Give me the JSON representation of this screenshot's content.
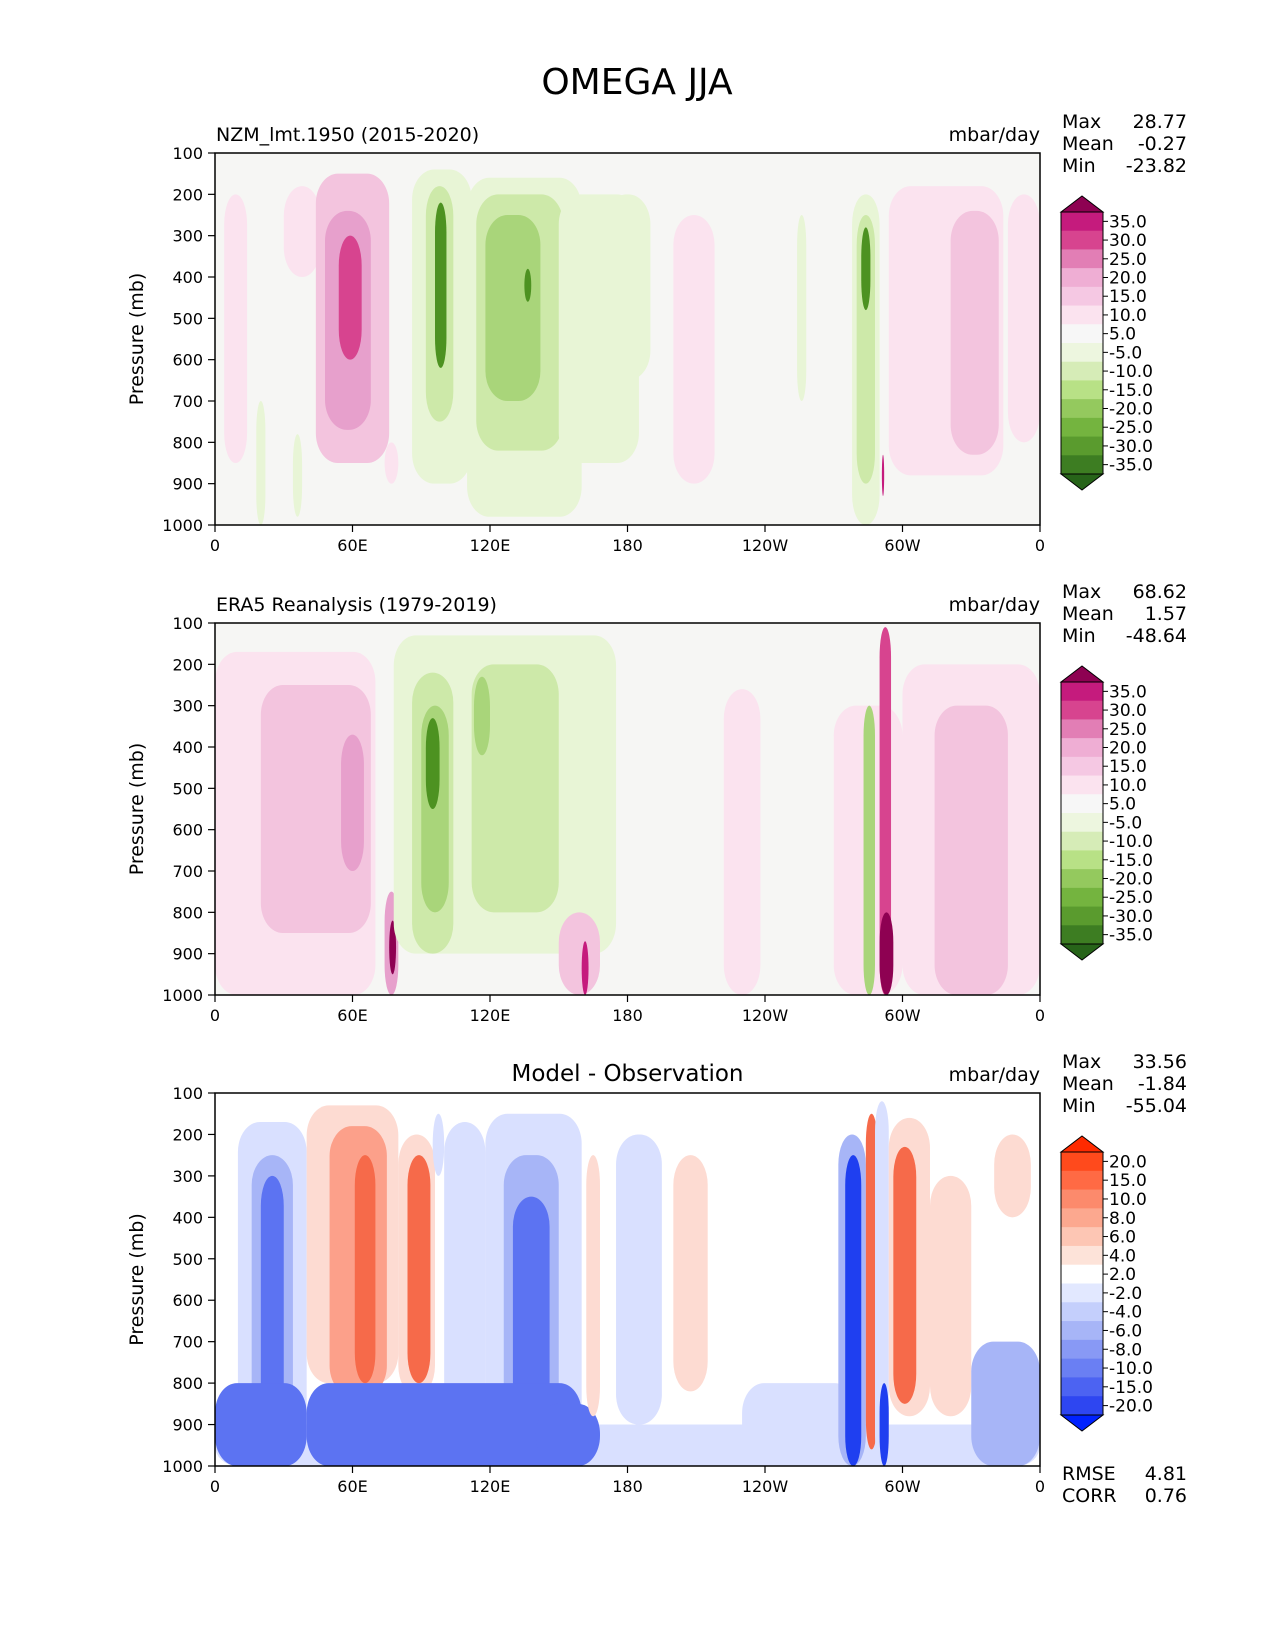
{
  "figure_title": "OMEGA JJA",
  "colors": {
    "background": "#ffffff",
    "panel_fill": "#f6f6f4",
    "pink_light": "#fbe3ef",
    "pink_mid": "#f3c4de",
    "pink_strong": "#e7a0cc",
    "magenta_dark": "#8e0152",
    "green_light": "#e8f5d6",
    "green_mid": "#cde9a9",
    "green_strong": "#a9d57a",
    "green_dark": "#4d9221",
    "red_light": "#fddbd2",
    "red_mid": "#fca08a",
    "red_strong": "#f66a4a",
    "blue_light": "#d9e0ff",
    "blue_mid": "#a7b5f7",
    "blue_strong": "#5c73f2",
    "blue_dark": "#1f3ff0"
  },
  "chart_data": [
    {
      "type": "heatmap",
      "id": "model",
      "title": "NZM_lmt.1950 (2015-2020)",
      "title_center": "",
      "units": "mbar/day",
      "ylabel": "Pressure (mb)",
      "xlabel": "",
      "x_ticks": [
        "0",
        "60E",
        "120E",
        "180",
        "120W",
        "60W",
        "0"
      ],
      "y_ticks": [
        "100",
        "200",
        "300",
        "400",
        "500",
        "600",
        "700",
        "800",
        "900",
        "1000"
      ],
      "xlim": [
        0,
        360
      ],
      "ylim": [
        1000,
        100
      ],
      "stats": [
        {
          "label": "Max",
          "value": "28.77"
        },
        {
          "label": "Mean",
          "value": "-0.27"
        },
        {
          "label": "Min",
          "value": "-23.82"
        }
      ],
      "extra_stats": [],
      "colorbar": {
        "labels": [
          "35.0",
          "30.0",
          "25.0",
          "20.0",
          "15.0",
          "10.0",
          "5.0",
          "-5.0",
          "-10.0",
          "-15.0",
          "-20.0",
          "-25.0",
          "-30.0",
          "-35.0"
        ],
        "top_color": "#8e0152",
        "bottom_color": "#276419",
        "swatches": [
          "#c51b7d",
          "#d7448f",
          "#e27eb5",
          "#efaed4",
          "#f5c8e3",
          "#fbe3ef",
          "#f7f7f7",
          "#edf6df",
          "#d6ecb7",
          "#b8e186",
          "#94c95e",
          "#74b43f",
          "#5a9b2e",
          "#3d7d22"
        ]
      },
      "features": [
        {
          "x0": 4,
          "x1": 14,
          "p0": 200,
          "p1": 850,
          "v": 5
        },
        {
          "x0": 30,
          "x1": 46,
          "p0": 180,
          "p1": 400,
          "v": 5
        },
        {
          "x0": 44,
          "x1": 76,
          "p0": 150,
          "p1": 850,
          "v": 10
        },
        {
          "x0": 48,
          "x1": 68,
          "p0": 240,
          "p1": 770,
          "v": 15
        },
        {
          "x0": 54,
          "x1": 64,
          "p0": 300,
          "p1": 600,
          "v": 20
        },
        {
          "x0": 18,
          "x1": 22,
          "p0": 700,
          "p1": 1000,
          "v": -5
        },
        {
          "x0": 34,
          "x1": 38,
          "p0": 780,
          "p1": 980,
          "v": -5
        },
        {
          "x0": 74,
          "x1": 80,
          "p0": 800,
          "p1": 900,
          "v": 5
        },
        {
          "x0": 86,
          "x1": 112,
          "p0": 140,
          "p1": 900,
          "v": -5
        },
        {
          "x0": 92,
          "x1": 104,
          "p0": 180,
          "p1": 750,
          "v": -10
        },
        {
          "x0": 96,
          "x1": 101,
          "p0": 220,
          "p1": 620,
          "v": -20
        },
        {
          "x0": 110,
          "x1": 160,
          "p0": 160,
          "p1": 980,
          "v": -5
        },
        {
          "x0": 114,
          "x1": 152,
          "p0": 200,
          "p1": 820,
          "v": -10
        },
        {
          "x0": 118,
          "x1": 142,
          "p0": 250,
          "p1": 700,
          "v": -15
        },
        {
          "x0": 135,
          "x1": 138,
          "p0": 380,
          "p1": 460,
          "v": -20
        },
        {
          "x0": 150,
          "x1": 185,
          "p0": 200,
          "p1": 850,
          "v": -5
        },
        {
          "x0": 170,
          "x1": 190,
          "p0": 200,
          "p1": 650,
          "v": -5
        },
        {
          "x0": 200,
          "x1": 218,
          "p0": 250,
          "p1": 900,
          "v": 5
        },
        {
          "x0": 254,
          "x1": 258,
          "p0": 250,
          "p1": 700,
          "v": -5
        },
        {
          "x0": 278,
          "x1": 290,
          "p0": 200,
          "p1": 1000,
          "v": -5
        },
        {
          "x0": 280,
          "x1": 288,
          "p0": 250,
          "p1": 900,
          "v": -10
        },
        {
          "x0": 282,
          "x1": 286,
          "p0": 280,
          "p1": 480,
          "v": -20
        },
        {
          "x0": 291,
          "x1": 292,
          "p0": 830,
          "p1": 930,
          "v": 25
        },
        {
          "x0": 294,
          "x1": 344,
          "p0": 180,
          "p1": 880,
          "v": 5
        },
        {
          "x0": 321,
          "x1": 342,
          "p0": 240,
          "p1": 830,
          "v": 10
        },
        {
          "x0": 346,
          "x1": 360,
          "p0": 200,
          "p1": 800,
          "v": 5
        }
      ]
    },
    {
      "type": "heatmap",
      "id": "obs",
      "title": "ERA5 Reanalysis (1979-2019)",
      "title_center": "",
      "units": "mbar/day",
      "ylabel": "Pressure (mb)",
      "xlabel": "",
      "x_ticks": [
        "0",
        "60E",
        "120E",
        "180",
        "120W",
        "60W",
        "0"
      ],
      "y_ticks": [
        "100",
        "200",
        "300",
        "400",
        "500",
        "600",
        "700",
        "800",
        "900",
        "1000"
      ],
      "xlim": [
        0,
        360
      ],
      "ylim": [
        1000,
        100
      ],
      "stats": [
        {
          "label": "Max",
          "value": "68.62"
        },
        {
          "label": "Mean",
          "value": "1.57"
        },
        {
          "label": "Min",
          "value": "-48.64"
        }
      ],
      "extra_stats": [],
      "colorbar": {
        "labels": [
          "35.0",
          "30.0",
          "25.0",
          "20.0",
          "15.0",
          "10.0",
          "5.0",
          "-5.0",
          "-10.0",
          "-15.0",
          "-20.0",
          "-25.0",
          "-30.0",
          "-35.0"
        ],
        "top_color": "#8e0152",
        "bottom_color": "#276419",
        "swatches": [
          "#c51b7d",
          "#d7448f",
          "#e27eb5",
          "#efaed4",
          "#f5c8e3",
          "#fbe3ef",
          "#f7f7f7",
          "#edf6df",
          "#d6ecb7",
          "#b8e186",
          "#94c95e",
          "#74b43f",
          "#5a9b2e",
          "#3d7d22"
        ]
      },
      "features": [
        {
          "x0": 0,
          "x1": 70,
          "p0": 170,
          "p1": 1000,
          "v": 5
        },
        {
          "x0": 20,
          "x1": 68,
          "p0": 250,
          "p1": 850,
          "v": 10
        },
        {
          "x0": 55,
          "x1": 65,
          "p0": 370,
          "p1": 700,
          "v": 15
        },
        {
          "x0": 74,
          "x1": 80,
          "p0": 750,
          "p1": 1000,
          "v": 15
        },
        {
          "x0": 76,
          "x1": 79,
          "p0": 820,
          "p1": 950,
          "v": 30
        },
        {
          "x0": 78,
          "x1": 175,
          "p0": 130,
          "p1": 900,
          "v": -5
        },
        {
          "x0": 86,
          "x1": 104,
          "p0": 220,
          "p1": 900,
          "v": -10
        },
        {
          "x0": 90,
          "x1": 102,
          "p0": 300,
          "p1": 800,
          "v": -15
        },
        {
          "x0": 92,
          "x1": 98,
          "p0": 330,
          "p1": 550,
          "v": -20
        },
        {
          "x0": 112,
          "x1": 150,
          "p0": 200,
          "p1": 800,
          "v": -10
        },
        {
          "x0": 113,
          "x1": 120,
          "p0": 230,
          "p1": 420,
          "v": -15
        },
        {
          "x0": 150,
          "x1": 168,
          "p0": 800,
          "p1": 1000,
          "v": 10
        },
        {
          "x0": 160,
          "x1": 163,
          "p0": 870,
          "p1": 1000,
          "v": 25
        },
        {
          "x0": 222,
          "x1": 238,
          "p0": 260,
          "p1": 1000,
          "v": 5
        },
        {
          "x0": 270,
          "x1": 300,
          "p0": 300,
          "p1": 1000,
          "v": 5
        },
        {
          "x0": 283,
          "x1": 288,
          "p0": 300,
          "p1": 1000,
          "v": -15
        },
        {
          "x0": 290,
          "x1": 295,
          "p0": 110,
          "p1": 1000,
          "v": 20
        },
        {
          "x0": 290,
          "x1": 296,
          "p0": 800,
          "p1": 1000,
          "v": 35
        },
        {
          "x0": 300,
          "x1": 360,
          "p0": 200,
          "p1": 1000,
          "v": 5
        },
        {
          "x0": 314,
          "x1": 346,
          "p0": 300,
          "p1": 1000,
          "v": 10
        }
      ]
    },
    {
      "type": "heatmap",
      "id": "diff",
      "title": "",
      "title_center": "Model - Observation",
      "units": "mbar/day",
      "ylabel": "Pressure (mb)",
      "xlabel": "",
      "x_ticks": [
        "0",
        "60E",
        "120E",
        "180",
        "120W",
        "60W",
        "0"
      ],
      "y_ticks": [
        "100",
        "200",
        "300",
        "400",
        "500",
        "600",
        "700",
        "800",
        "900",
        "1000"
      ],
      "xlim": [
        0,
        360
      ],
      "ylim": [
        1000,
        100
      ],
      "stats": [
        {
          "label": "Max",
          "value": "33.56"
        },
        {
          "label": "Mean",
          "value": "-1.84"
        },
        {
          "label": "Min",
          "value": "-55.04"
        }
      ],
      "extra_stats": [
        {
          "label": "RMSE",
          "value": "4.81"
        },
        {
          "label": "CORR",
          "value": "0.76"
        }
      ],
      "colorbar": {
        "labels": [
          "20.0",
          "15.0",
          "10.0",
          "8.0",
          "6.0",
          "4.0",
          "2.0",
          "-2.0",
          "-4.0",
          "-6.0",
          "-8.0",
          "-10.0",
          "-15.0",
          "-20.0"
        ],
        "top_color": "#ff2a00",
        "bottom_color": "#0022ff",
        "swatches": [
          "#ff4a1c",
          "#ff6a44",
          "#fc8a6c",
          "#fca88f",
          "#fdc6b4",
          "#fde3d9",
          "#ffffff",
          "#e2e8ff",
          "#c4cffc",
          "#a7b5f7",
          "#8899f5",
          "#6a7ff3",
          "#4c63f2",
          "#2e46f1"
        ]
      },
      "features": [
        {
          "x0": 0,
          "x1": 360,
          "p0": 900,
          "p1": 1000,
          "v": -4
        },
        {
          "x0": 10,
          "x1": 40,
          "p0": 170,
          "p1": 1000,
          "v": -4
        },
        {
          "x0": 16,
          "x1": 34,
          "p0": 250,
          "p1": 1000,
          "v": -8
        },
        {
          "x0": 20,
          "x1": 30,
          "p0": 300,
          "p1": 980,
          "v": -15
        },
        {
          "x0": 0,
          "x1": 40,
          "p0": 800,
          "p1": 1000,
          "v": -10
        },
        {
          "x0": 40,
          "x1": 80,
          "p0": 130,
          "p1": 800,
          "v": 4
        },
        {
          "x0": 50,
          "x1": 75,
          "p0": 180,
          "p1": 830,
          "v": 8
        },
        {
          "x0": 61,
          "x1": 70,
          "p0": 250,
          "p1": 800,
          "v": 15
        },
        {
          "x0": 80,
          "x1": 96,
          "p0": 200,
          "p1": 830,
          "v": 6
        },
        {
          "x0": 84,
          "x1": 94,
          "p0": 250,
          "p1": 800,
          "v": 15
        },
        {
          "x0": 95,
          "x1": 100,
          "p0": 150,
          "p1": 300,
          "v": -4
        },
        {
          "x0": 100,
          "x1": 118,
          "p0": 170,
          "p1": 1000,
          "v": -2
        },
        {
          "x0": 118,
          "x1": 160,
          "p0": 150,
          "p1": 1000,
          "v": -4
        },
        {
          "x0": 126,
          "x1": 150,
          "p0": 250,
          "p1": 1000,
          "v": -8
        },
        {
          "x0": 130,
          "x1": 146,
          "p0": 350,
          "p1": 1000,
          "v": -10
        },
        {
          "x0": 40,
          "x1": 160,
          "p0": 800,
          "p1": 1000,
          "v": -10
        },
        {
          "x0": 140,
          "x1": 168,
          "p0": 850,
          "p1": 1000,
          "v": -15
        },
        {
          "x0": 162,
          "x1": 168,
          "p0": 250,
          "p1": 880,
          "v": 4
        },
        {
          "x0": 175,
          "x1": 195,
          "p0": 200,
          "p1": 900,
          "v": -2
        },
        {
          "x0": 200,
          "x1": 215,
          "p0": 250,
          "p1": 820,
          "v": 4
        },
        {
          "x0": 230,
          "x1": 280,
          "p0": 800,
          "p1": 1000,
          "v": -4
        },
        {
          "x0": 272,
          "x1": 284,
          "p0": 200,
          "p1": 1000,
          "v": -8
        },
        {
          "x0": 275,
          "x1": 282,
          "p0": 250,
          "p1": 1000,
          "v": -20
        },
        {
          "x0": 284,
          "x1": 289,
          "p0": 150,
          "p1": 960,
          "v": 20
        },
        {
          "x0": 288,
          "x1": 294,
          "p0": 120,
          "p1": 1000,
          "v": -4
        },
        {
          "x0": 290,
          "x1": 294,
          "p0": 800,
          "p1": 1000,
          "v": -20
        },
        {
          "x0": 294,
          "x1": 312,
          "p0": 160,
          "p1": 880,
          "v": 6
        },
        {
          "x0": 296,
          "x1": 306,
          "p0": 230,
          "p1": 850,
          "v": 15
        },
        {
          "x0": 312,
          "x1": 330,
          "p0": 300,
          "p1": 880,
          "v": 4
        },
        {
          "x0": 330,
          "x1": 360,
          "p0": 700,
          "p1": 1000,
          "v": -8
        },
        {
          "x0": 340,
          "x1": 356,
          "p0": 200,
          "p1": 400,
          "v": 4
        }
      ]
    }
  ]
}
